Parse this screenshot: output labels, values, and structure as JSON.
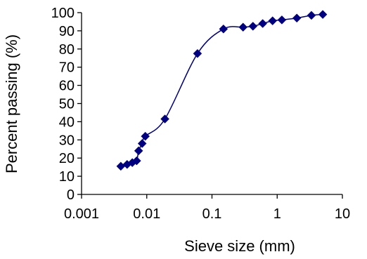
{
  "chart_data": {
    "type": "scatter",
    "xlabel": "Sieve size (mm)",
    "ylabel": "Percent passing (%)",
    "xscale": "log",
    "xlim": [
      0.001,
      10
    ],
    "ylim": [
      0,
      100
    ],
    "x_ticks": [
      0.001,
      0.01,
      0.1,
      1,
      10
    ],
    "x_tick_labels": [
      "0.001",
      "0.01",
      "0.1",
      "1",
      "10"
    ],
    "y_ticks": [
      0,
      10,
      20,
      30,
      40,
      50,
      60,
      70,
      80,
      90,
      100
    ],
    "y_tick_labels": [
      "0",
      "10",
      "20",
      "30",
      "40",
      "50",
      "60",
      "70",
      "80",
      "90",
      "100"
    ],
    "grid": false,
    "legend": "none",
    "marker": "diamond",
    "line": "smoothed",
    "color": "#000080",
    "series": [
      {
        "points": [
          [
            0.004,
            15.5
          ],
          [
            0.005,
            16.5
          ],
          [
            0.006,
            17.5
          ],
          [
            0.007,
            18.5
          ],
          [
            0.0075,
            24
          ],
          [
            0.0085,
            28
          ],
          [
            0.0095,
            32
          ],
          [
            0.019,
            41.5
          ],
          [
            0.06,
            77.5
          ],
          [
            0.15,
            91
          ],
          [
            0.3,
            92
          ],
          [
            0.425,
            92.5
          ],
          [
            0.6,
            94
          ],
          [
            0.85,
            95.5
          ],
          [
            1.18,
            96
          ],
          [
            2.0,
            97
          ],
          [
            3.35,
            98.5
          ],
          [
            5.0,
            99
          ]
        ]
      }
    ]
  }
}
